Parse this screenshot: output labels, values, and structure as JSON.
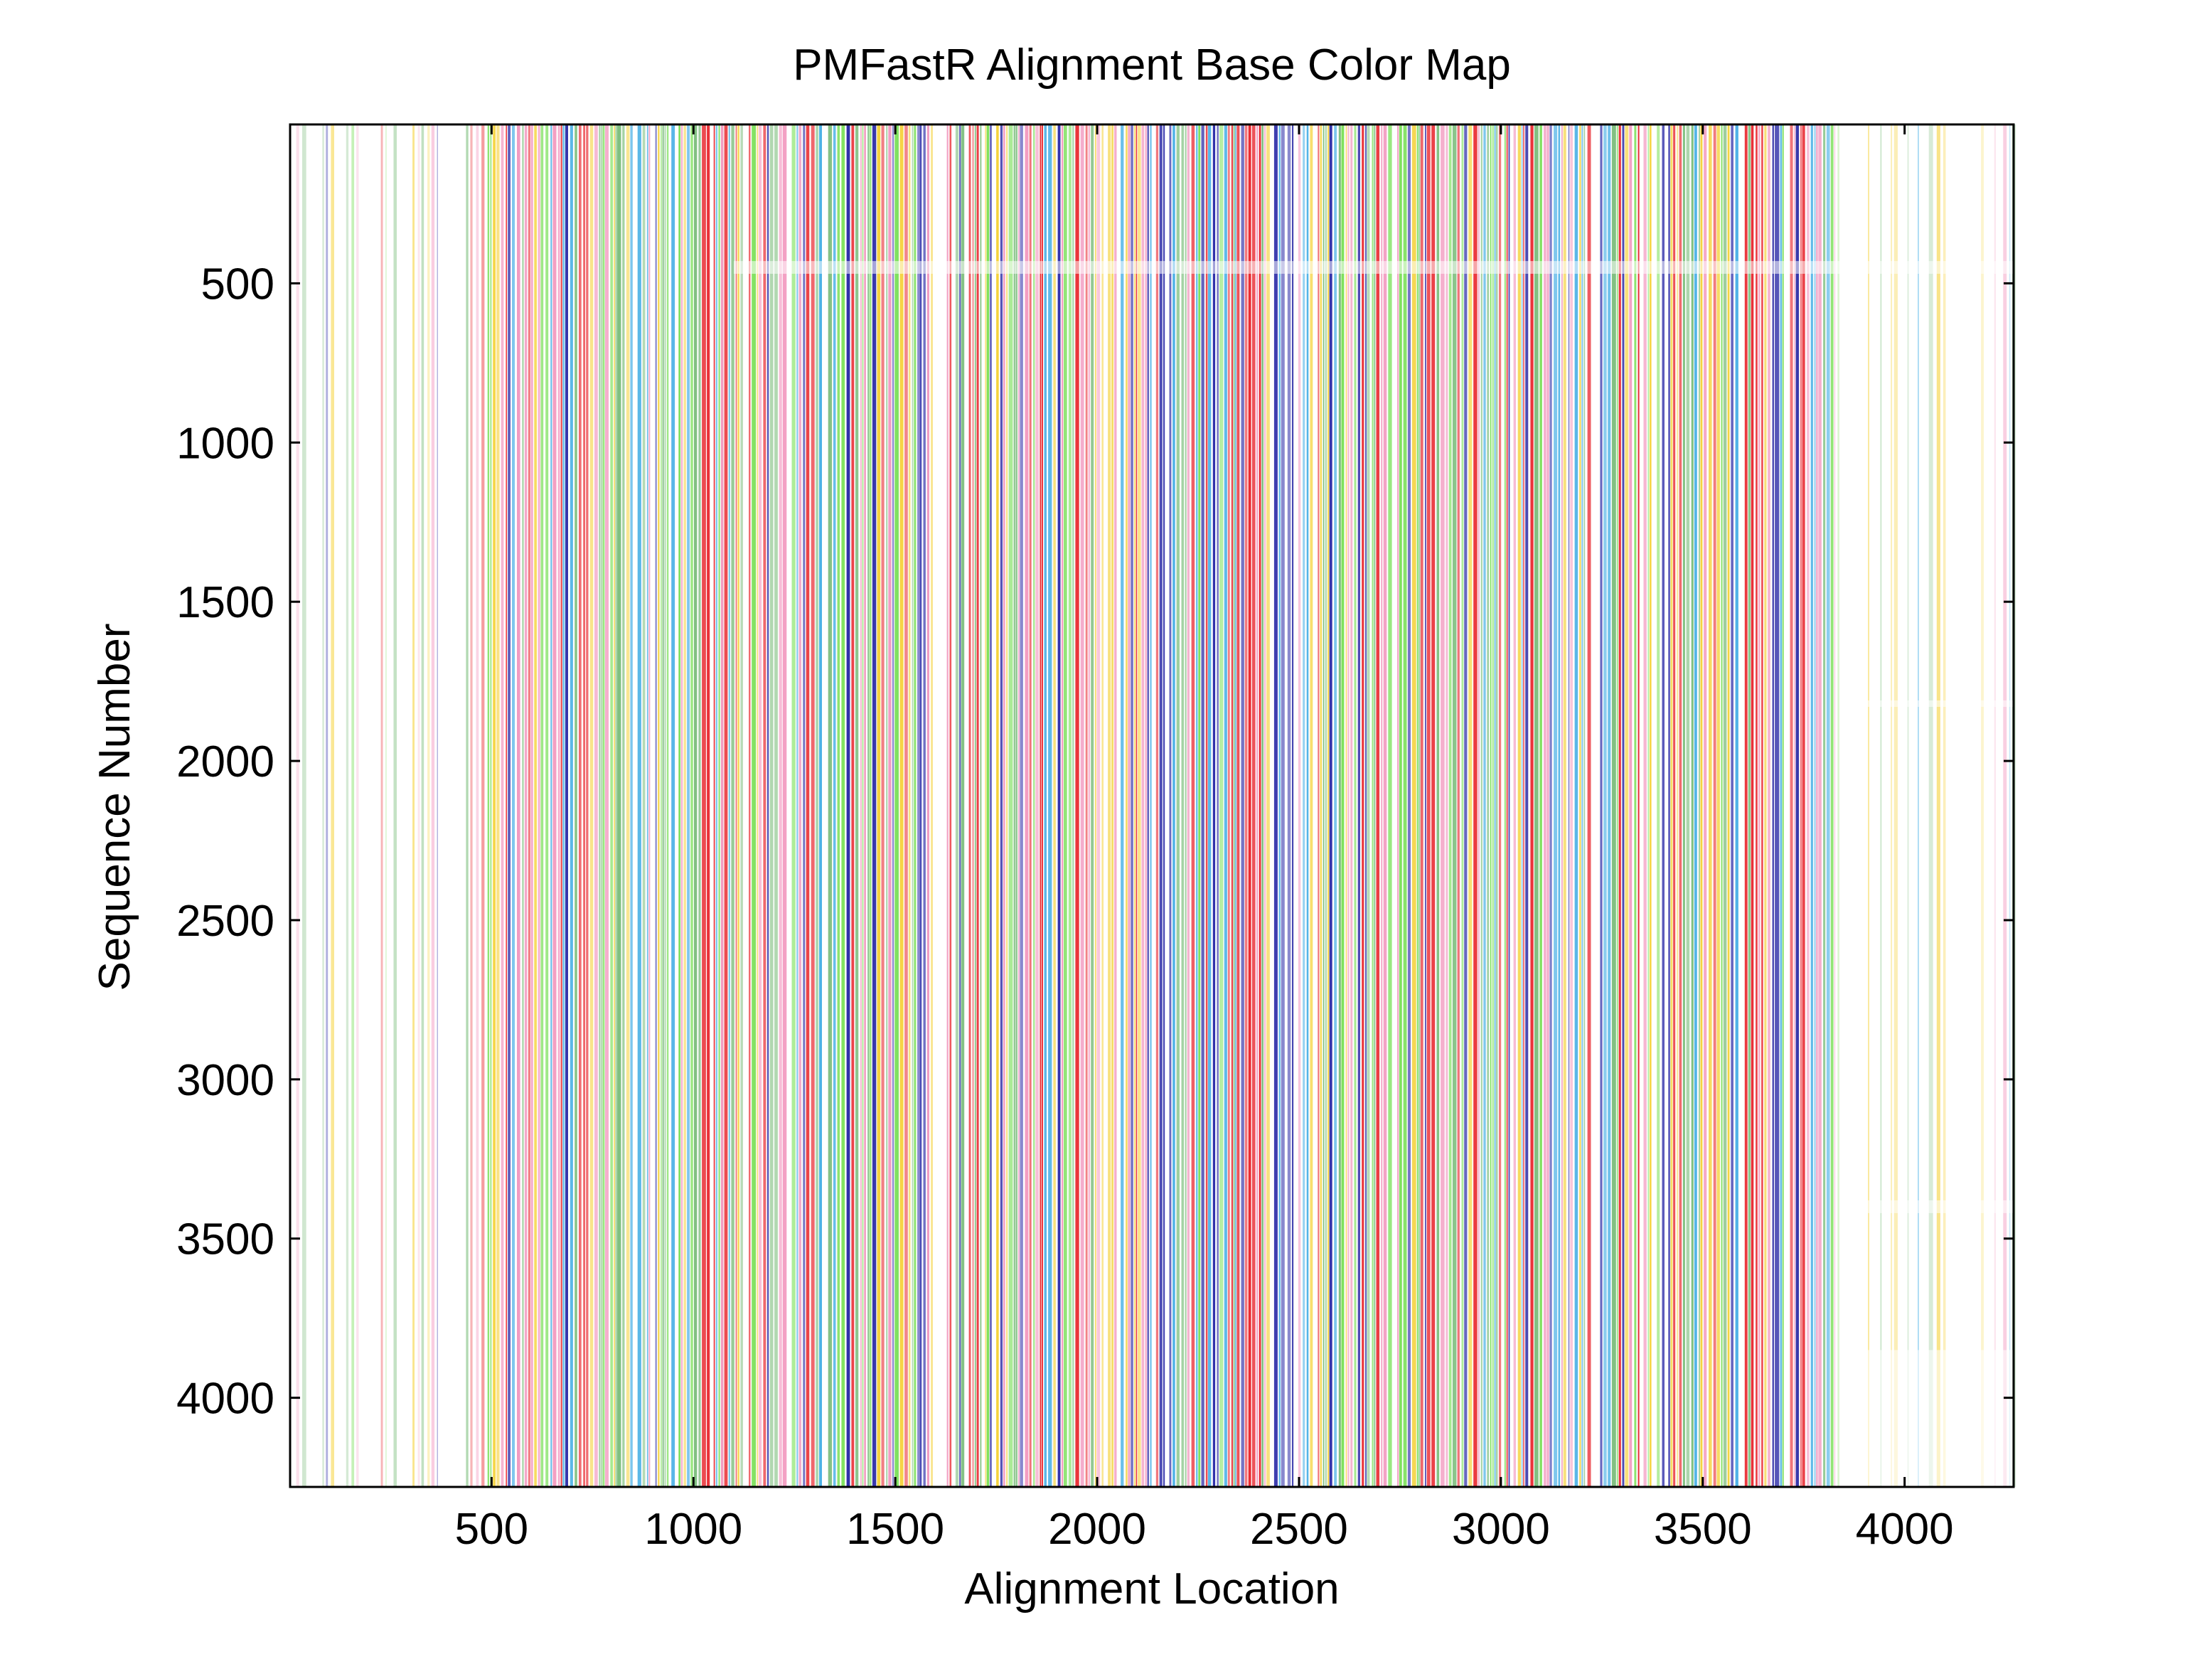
{
  "chart_data": {
    "type": "heatmap",
    "title": "PMFastR Alignment Base Color Map",
    "xlabel": "Alignment Location",
    "ylabel": "Sequence Number",
    "xlim": [
      1,
      4270
    ],
    "ylim": [
      1,
      4280
    ],
    "y_reversed": true,
    "grid": false,
    "legend": "none",
    "x_ticks": [
      500,
      1000,
      1500,
      2000,
      2500,
      3000,
      3500,
      4000
    ],
    "y_ticks": [
      500,
      1000,
      1500,
      2000,
      2500,
      3000,
      3500,
      4000
    ],
    "x_tick_labels": [
      "500",
      "1000",
      "1500",
      "2000",
      "2500",
      "3000",
      "3500",
      "4000"
    ],
    "y_tick_labels": [
      "500",
      "1000",
      "1500",
      "2000",
      "2500",
      "3000",
      "3500",
      "4000"
    ],
    "base_colors": [
      "#e8232a",
      "#2e2ea8",
      "#7ce05a",
      "#f5d23c",
      "#f29ac0",
      "#7fbf7f",
      "#4ab0e6"
    ],
    "background_color": "#ffffff",
    "dense_column_range": [
      480,
      3820
    ],
    "sparse_column_ranges": [
      [
        1,
        480
      ],
      [
        3820,
        4270
      ]
    ],
    "gap_band_rows": [
      [
        430,
        470
      ],
      [
        1810,
        1830
      ],
      [
        3380,
        3420
      ],
      [
        3850,
        4280
      ]
    ]
  }
}
